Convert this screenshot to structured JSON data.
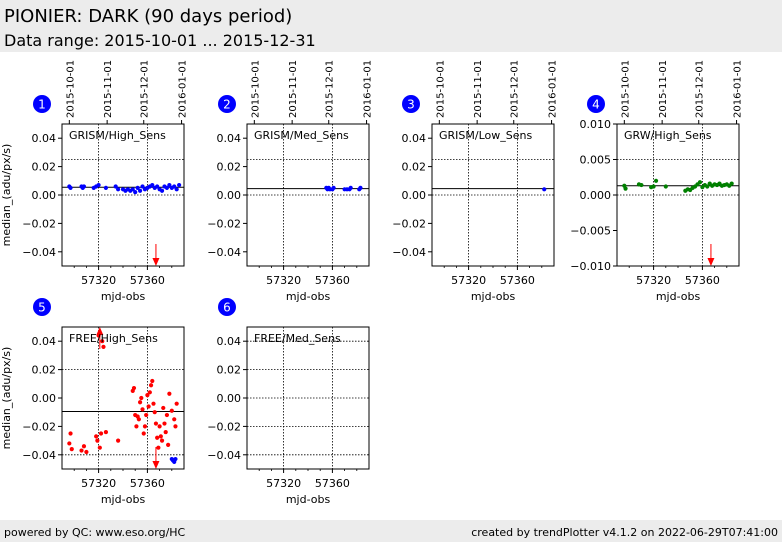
{
  "header": {
    "title": "PIONIER: DARK (90 days period)",
    "subtitle": "Data range: 2015-10-01 ... 2015-12-31"
  },
  "footer": {
    "left": "powered by QC: www.eso.org/HC",
    "right": "created by trendPlotter v4.1.2 on 2022-06-29T07:41:00"
  },
  "colors": {
    "header_bg": "#ececec",
    "badge": "#0000ff",
    "blue_series": "#0000ff",
    "green_series": "#008000",
    "red_series": "#ff0000",
    "arrow": "#ff0000"
  },
  "chart_data": [
    {
      "id": 1,
      "type": "scatter",
      "label": "GRISM/High_Sens",
      "xlabel": "mjd-obs",
      "ylabel": "median_(adu/px/s)",
      "xlim": [
        57290,
        57390
      ],
      "ylim": [
        -0.05,
        0.05
      ],
      "xticks": [
        57320,
        57360
      ],
      "xtick_labels": [
        "57320",
        "57360"
      ],
      "yticks": [
        0.04,
        0.02,
        0.0,
        -0.02,
        -0.04
      ],
      "ytick_labels": [
        "0.04",
        "0.02",
        "0.00",
        "−0.02",
        "−0.04"
      ],
      "date_ticks": [
        "2015-10-01",
        "2015-11-01",
        "2015-12-01",
        "2016-01-01"
      ],
      "hlines": [
        0.025,
        0.0055,
        0.0
      ],
      "series": [
        {
          "color": "blue",
          "x": [
            57296,
            57297,
            57306,
            57307,
            57308,
            57316,
            57318,
            57320,
            57326,
            57334,
            57336,
            57340,
            57342,
            57344,
            57346,
            57348,
            57350,
            57352,
            57354,
            57356,
            57358,
            57360,
            57362,
            57364,
            57366,
            57368,
            57370,
            57372,
            57374,
            57376,
            57378,
            57380,
            57382,
            57384,
            57386
          ],
          "y": [
            0.006,
            0.005,
            0.006,
            0.005,
            0.006,
            0.005,
            0.006,
            0.007,
            0.005,
            0.006,
            0.004,
            0.004,
            0.003,
            0.004,
            0.003,
            0.004,
            0.002,
            0.005,
            0.003,
            0.006,
            0.004,
            0.005,
            0.006,
            0.007,
            0.005,
            0.006,
            0.004,
            0.003,
            0.006,
            0.005,
            0.007,
            0.005,
            0.006,
            0.004,
            0.007
          ]
        }
      ],
      "arrows": [
        {
          "x": 57367,
          "dir": "down"
        }
      ]
    },
    {
      "id": 2,
      "type": "scatter",
      "label": "GRISM/Med_Sens",
      "xlabel": "mjd-obs",
      "ylabel": "",
      "xlim": [
        57290,
        57390
      ],
      "ylim": [
        -0.05,
        0.05
      ],
      "xticks": [
        57320,
        57360
      ],
      "xtick_labels": [
        "57320",
        "57360"
      ],
      "yticks": [
        0.04,
        0.02,
        0.0,
        -0.02,
        -0.04
      ],
      "ytick_labels": [
        "0.04",
        "0.02",
        "0.00",
        "−0.02",
        "−0.04"
      ],
      "date_ticks": [
        "2015-10-01",
        "2015-11-01",
        "2015-12-01",
        "2016-01-01"
      ],
      "hlines": [
        0.025,
        0.0045,
        0.0
      ],
      "series": [
        {
          "color": "blue",
          "x": [
            57355,
            57356,
            57357,
            57358,
            57360,
            57361,
            57370,
            57372,
            57374,
            57375,
            57382,
            57383
          ],
          "y": [
            0.005,
            0.004,
            0.005,
            0.004,
            0.004,
            0.005,
            0.004,
            0.004,
            0.004,
            0.005,
            0.004,
            0.005
          ]
        }
      ],
      "arrows": []
    },
    {
      "id": 3,
      "type": "scatter",
      "label": "GRISM/Low_Sens",
      "xlabel": "mjd-obs",
      "ylabel": "",
      "xlim": [
        57290,
        57390
      ],
      "ylim": [
        -0.05,
        0.05
      ],
      "xticks": [
        57320,
        57360
      ],
      "xtick_labels": [
        "57320",
        "57360"
      ],
      "yticks": [
        0.04,
        0.02,
        0.0,
        -0.02,
        -0.04
      ],
      "ytick_labels": [
        "0.04",
        "0.02",
        "0.00",
        "−0.02",
        "−0.04"
      ],
      "date_ticks": [
        "2015-10-01",
        "2015-11-01",
        "2015-12-01",
        "2016-01-01"
      ],
      "hlines": [
        0.025,
        0.0045,
        0.0
      ],
      "series": [
        {
          "color": "blue",
          "x": [
            57382
          ],
          "y": [
            0.004
          ]
        }
      ],
      "arrows": []
    },
    {
      "id": 4,
      "type": "scatter",
      "label": "GRW/High_Sens",
      "xlabel": "mjd-obs",
      "ylabel": "",
      "xlim": [
        57290,
        57390
      ],
      "ylim": [
        -0.01,
        0.01
      ],
      "xticks": [
        57320,
        57360
      ],
      "xtick_labels": [
        "57320",
        "57360"
      ],
      "yticks": [
        0.01,
        0.005,
        0.0,
        -0.005,
        -0.01
      ],
      "ytick_labels": [
        "0.010",
        "0.005",
        "0.000",
        "−0.005",
        "−0.010"
      ],
      "date_ticks": [
        "2015-10-01",
        "2015-11-01",
        "2015-12-01",
        "2016-01-01"
      ],
      "hlines": [
        0.005,
        0.0013,
        0.0
      ],
      "series": [
        {
          "color": "green",
          "x": [
            57296,
            57297,
            57308,
            57310,
            57318,
            57320,
            57322,
            57330,
            57346,
            57348,
            57350,
            57352,
            57354,
            57356,
            57358,
            57360,
            57362,
            57364,
            57366,
            57368,
            57370,
            57372,
            57374,
            57376,
            57378,
            57380,
            57382,
            57384
          ],
          "y": [
            0.0013,
            0.0009,
            0.0015,
            0.0014,
            0.0011,
            0.0012,
            0.002,
            0.0012,
            0.0006,
            0.0008,
            0.0007,
            0.001,
            0.0012,
            0.0015,
            0.0018,
            0.0011,
            0.0014,
            0.0012,
            0.0016,
            0.0013,
            0.0015,
            0.0014,
            0.0016,
            0.0013,
            0.0014,
            0.0015,
            0.0013,
            0.0016
          ]
        }
      ],
      "arrows": [
        {
          "x": 57367,
          "dir": "down"
        }
      ]
    },
    {
      "id": 5,
      "type": "scatter",
      "label": "FREE/High_Sens",
      "xlabel": "mjd-obs",
      "ylabel": "median_(adu/px/s)",
      "xlim": [
        57290,
        57390
      ],
      "ylim": [
        -0.05,
        0.05
      ],
      "xticks": [
        57320,
        57360
      ],
      "xtick_labels": [
        "57320",
        "57360"
      ],
      "yticks": [
        0.04,
        0.02,
        0.0,
        -0.02,
        -0.04
      ],
      "ytick_labels": [
        "0.04",
        "0.02",
        "0.00",
        "−0.02",
        "−0.04"
      ],
      "date_ticks": [],
      "hlines": [
        0.02,
        -0.0095,
        -0.04
      ],
      "series": [
        {
          "color": "red",
          "x": [
            57296,
            57297,
            57298,
            57306,
            57308,
            57310,
            57318,
            57319,
            57320,
            57321,
            57322,
            57323,
            57324,
            57326,
            57336,
            57348,
            57349,
            57350,
            57351,
            57352,
            57353,
            57354,
            57355,
            57356,
            57357,
            57358,
            57359,
            57360,
            57361,
            57362,
            57363,
            57364,
            57365,
            57366,
            57367,
            57368,
            57369,
            57370,
            57371,
            57372,
            57373,
            57374,
            57375,
            57376,
            57377,
            57378,
            57380,
            57382,
            57383,
            57384
          ],
          "y": [
            -0.032,
            -0.025,
            -0.036,
            -0.037,
            -0.034,
            -0.038,
            -0.027,
            -0.03,
            0.044,
            -0.035,
            -0.025,
            0.04,
            0.036,
            -0.024,
            -0.03,
            0.005,
            0.007,
            -0.012,
            -0.02,
            -0.013,
            -0.015,
            -0.003,
            0.0,
            -0.008,
            -0.025,
            -0.02,
            -0.012,
            0.002,
            -0.006,
            0.004,
            0.009,
            0.012,
            -0.004,
            -0.01,
            -0.018,
            -0.028,
            -0.035,
            -0.02,
            -0.027,
            -0.03,
            -0.007,
            -0.018,
            -0.024,
            -0.012,
            -0.033,
            0.003,
            -0.009,
            -0.015,
            -0.02,
            -0.004
          ]
        },
        {
          "color": "blue",
          "x": [
            57380,
            57381,
            57382,
            57383
          ],
          "y": [
            -0.043,
            -0.044,
            -0.045,
            -0.043
          ]
        }
      ],
      "arrows": [
        {
          "x": 57321,
          "dir": "up"
        },
        {
          "x": 57367,
          "dir": "down"
        }
      ]
    },
    {
      "id": 6,
      "type": "scatter",
      "label": "FREE/Med_Sens",
      "xlabel": "mjd-obs",
      "ylabel": "",
      "xlim": [
        57290,
        57390
      ],
      "ylim": [
        -0.05,
        0.05
      ],
      "xticks": [
        57320,
        57360
      ],
      "xtick_labels": [
        "57320",
        "57360"
      ],
      "yticks": [
        0.04,
        0.02,
        0.0,
        -0.02,
        -0.04
      ],
      "ytick_labels": [
        "0.04",
        "0.02",
        "0.00",
        "−0.02",
        "−0.04"
      ],
      "date_ticks": [],
      "hlines": [
        0.04,
        0.02,
        0.0,
        -0.02,
        -0.04
      ],
      "series": [],
      "arrows": []
    }
  ]
}
